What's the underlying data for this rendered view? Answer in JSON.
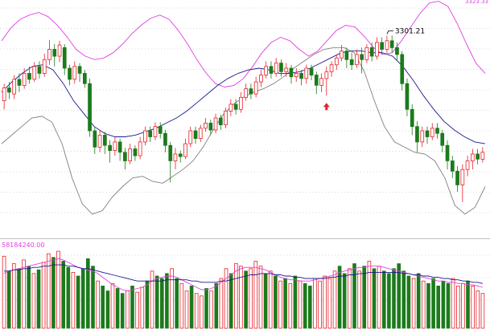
{
  "colors": {
    "up": "#e8202a",
    "down": "#1c7a1c",
    "upper_band": "#e040e0",
    "lower_band": "#808080",
    "middle_band": "#1a1a8c",
    "volume_ma_short": "#e040e0",
    "volume_ma_long": "#1a1a8c",
    "grid": "#b0b0b0",
    "max_marker": "#000000",
    "volume_label": "#e040e0",
    "signal_arrow": "#e8202a"
  },
  "price_panel": {
    "max_label": "3301.21",
    "top_right_label": "3323.33"
  },
  "volume_panel": {
    "label": "58184240.00"
  },
  "chart_data": [
    {
      "type": "candlestick",
      "title": "",
      "overlays": [
        "upper_band",
        "middle_band",
        "lower_band"
      ],
      "signal_arrow_index": 64,
      "candles": [
        [
          3230,
          3245,
          3250,
          3220
        ],
        [
          3245,
          3240,
          3252,
          3232
        ],
        [
          3238,
          3255,
          3260,
          3232
        ],
        [
          3255,
          3248,
          3262,
          3240
        ],
        [
          3248,
          3262,
          3268,
          3244
        ],
        [
          3262,
          3255,
          3270,
          3250
        ],
        [
          3255,
          3270,
          3275,
          3252
        ],
        [
          3270,
          3262,
          3276,
          3256
        ],
        [
          3262,
          3278,
          3285,
          3258
        ],
        [
          3278,
          3290,
          3301,
          3272
        ],
        [
          3290,
          3282,
          3296,
          3270
        ],
        [
          3282,
          3295,
          3300,
          3275
        ],
        [
          3292,
          3268,
          3296,
          3260
        ],
        [
          3268,
          3255,
          3272,
          3248
        ],
        [
          3255,
          3270,
          3276,
          3250
        ],
        [
          3270,
          3262,
          3274,
          3252
        ],
        [
          3262,
          3250,
          3266,
          3245
        ],
        [
          3250,
          3195,
          3256,
          3188
        ],
        [
          3195,
          3176,
          3200,
          3168
        ],
        [
          3176,
          3190,
          3196,
          3170
        ],
        [
          3190,
          3178,
          3194,
          3168
        ],
        [
          3178,
          3172,
          3184,
          3158
        ],
        [
          3172,
          3182,
          3188,
          3166
        ],
        [
          3182,
          3170,
          3186,
          3160
        ],
        [
          3170,
          3160,
          3175,
          3150
        ],
        [
          3160,
          3174,
          3180,
          3156
        ],
        [
          3174,
          3166,
          3178,
          3160
        ],
        [
          3166,
          3182,
          3188,
          3162
        ],
        [
          3182,
          3195,
          3200,
          3178
        ],
        [
          3195,
          3188,
          3200,
          3182
        ],
        [
          3188,
          3200,
          3205,
          3184
        ],
        [
          3200,
          3192,
          3205,
          3186
        ],
        [
          3192,
          3178,
          3196,
          3170
        ],
        [
          3178,
          3160,
          3182,
          3135
        ],
        [
          3160,
          3168,
          3175,
          3150
        ],
        [
          3168,
          3165,
          3172,
          3158
        ],
        [
          3165,
          3180,
          3186,
          3162
        ],
        [
          3180,
          3195,
          3200,
          3176
        ],
        [
          3195,
          3186,
          3200,
          3180
        ],
        [
          3186,
          3198,
          3202,
          3182
        ],
        [
          3198,
          3204,
          3210,
          3194
        ],
        [
          3204,
          3196,
          3208,
          3190
        ],
        [
          3196,
          3210,
          3215,
          3192
        ],
        [
          3210,
          3202,
          3214,
          3196
        ],
        [
          3202,
          3218,
          3222,
          3198
        ],
        [
          3218,
          3226,
          3232,
          3212
        ],
        [
          3226,
          3220,
          3232,
          3214
        ],
        [
          3220,
          3234,
          3240,
          3216
        ],
        [
          3234,
          3244,
          3250,
          3230
        ],
        [
          3244,
          3238,
          3250,
          3232
        ],
        [
          3238,
          3252,
          3258,
          3234
        ],
        [
          3252,
          3260,
          3266,
          3246
        ],
        [
          3260,
          3270,
          3276,
          3256
        ],
        [
          3270,
          3262,
          3276,
          3256
        ],
        [
          3262,
          3274,
          3280,
          3258
        ],
        [
          3274,
          3264,
          3278,
          3258
        ],
        [
          3264,
          3268,
          3274,
          3258
        ],
        [
          3268,
          3258,
          3272,
          3250
        ],
        [
          3258,
          3262,
          3268,
          3252
        ],
        [
          3262,
          3256,
          3266,
          3248
        ],
        [
          3256,
          3268,
          3272,
          3250
        ],
        [
          3268,
          3260,
          3272,
          3254
        ],
        [
          3260,
          3248,
          3264,
          3238
        ],
        [
          3248,
          3256,
          3262,
          3240
        ],
        [
          3256,
          3264,
          3270,
          3236
        ],
        [
          3264,
          3272,
          3276,
          3258
        ],
        [
          3272,
          3280,
          3284,
          3266
        ],
        [
          3280,
          3288,
          3295,
          3276
        ],
        [
          3288,
          3278,
          3292,
          3268
        ],
        [
          3278,
          3272,
          3286,
          3266
        ],
        [
          3272,
          3284,
          3290,
          3268
        ],
        [
          3284,
          3278,
          3292,
          3262
        ],
        [
          3278,
          3292,
          3296,
          3274
        ],
        [
          3292,
          3282,
          3298,
          3276
        ],
        [
          3282,
          3298,
          3304,
          3278
        ],
        [
          3298,
          3290,
          3304,
          3284
        ],
        [
          3290,
          3300,
          3306,
          3286
        ],
        [
          3300,
          3292,
          3306,
          3286
        ],
        [
          3292,
          3284,
          3298,
          3276
        ],
        [
          3284,
          3250,
          3288,
          3242
        ],
        [
          3250,
          3220,
          3256,
          3212
        ],
        [
          3220,
          3200,
          3226,
          3190
        ],
        [
          3200,
          3182,
          3206,
          3170
        ],
        [
          3182,
          3195,
          3200,
          3176
        ],
        [
          3195,
          3188,
          3200,
          3180
        ],
        [
          3188,
          3198,
          3204,
          3184
        ],
        [
          3198,
          3192,
          3204,
          3186
        ],
        [
          3192,
          3178,
          3196,
          3170
        ],
        [
          3178,
          3160,
          3184,
          3150
        ],
        [
          3160,
          3148,
          3166,
          3140
        ],
        [
          3148,
          3132,
          3154,
          3124
        ],
        [
          3132,
          3150,
          3156,
          3112
        ],
        [
          3150,
          3160,
          3166,
          3142
        ],
        [
          3160,
          3168,
          3174,
          3150
        ],
        [
          3168,
          3162,
          3174,
          3156
        ],
        [
          3162,
          3170,
          3176,
          3158
        ]
      ],
      "upper_band": [
        3300,
        3315,
        3325,
        3330,
        3333,
        3328,
        3318,
        3305,
        3290,
        3282,
        3278,
        3280,
        3286,
        3296,
        3308,
        3318,
        3326,
        3330,
        3325,
        3312,
        3296,
        3278,
        3262,
        3250,
        3246,
        3248,
        3256,
        3270,
        3286,
        3298,
        3304,
        3300,
        3290,
        3282,
        3288,
        3300,
        3312,
        3318,
        3316,
        3305,
        3292,
        3284,
        3286,
        3300,
        3316,
        3332,
        3344,
        3346,
        3340,
        3320,
        3296,
        3274,
        3262
      ],
      "middle_band": [
        3240,
        3252,
        3262,
        3270,
        3272,
        3266,
        3250,
        3230,
        3215,
        3200,
        3192,
        3188,
        3188,
        3190,
        3194,
        3198,
        3204,
        3210,
        3218,
        3228,
        3238,
        3248,
        3256,
        3262,
        3266,
        3268,
        3266,
        3262,
        3262,
        3264,
        3268,
        3274,
        3280,
        3286,
        3288,
        3288,
        3286,
        3286,
        3282,
        3270,
        3254,
        3236,
        3220,
        3206,
        3196,
        3188,
        3182,
        3180
      ],
      "lower_band": [
        3180,
        3190,
        3200,
        3210,
        3212,
        3205,
        3180,
        3140,
        3110,
        3098,
        3102,
        3118,
        3130,
        3140,
        3142,
        3136,
        3134,
        3142,
        3150,
        3160,
        3176,
        3196,
        3214,
        3226,
        3234,
        3240,
        3244,
        3250,
        3258,
        3268,
        3276,
        3284,
        3290,
        3292,
        3292,
        3286,
        3264,
        3230,
        3200,
        3182,
        3176,
        3170,
        3168,
        3160,
        3140,
        3108,
        3098,
        3106,
        3130
      ]
    },
    {
      "type": "bar",
      "title": "",
      "values": [
        58,
        46,
        52,
        48,
        55,
        50,
        44,
        47,
        53,
        60,
        57,
        62,
        54,
        49,
        45,
        42,
        48,
        56,
        50,
        38,
        34,
        30,
        36,
        32,
        28,
        30,
        34,
        29,
        33,
        38,
        46,
        42,
        40,
        44,
        48,
        40,
        36,
        30,
        34,
        28,
        26,
        32,
        30,
        36,
        40,
        48,
        44,
        52,
        50,
        46,
        48,
        54,
        50,
        44,
        46,
        42,
        38,
        40,
        36,
        42,
        38,
        36,
        34,
        40,
        38,
        42,
        40,
        46,
        50,
        44,
        48,
        52,
        46,
        50,
        54,
        48,
        50,
        46,
        44,
        48,
        52,
        46,
        42,
        40,
        44,
        38,
        36,
        40,
        34,
        38,
        36,
        40,
        34,
        36,
        38,
        34,
        30,
        28
      ],
      "ma_short": [
        44,
        46,
        47,
        48,
        49,
        50,
        51,
        52,
        53,
        54,
        55,
        56,
        55,
        53,
        51,
        49,
        48,
        47,
        46,
        44,
        41,
        38,
        35,
        33,
        31,
        30,
        31,
        32,
        33,
        35,
        38,
        40,
        41,
        42,
        42,
        41,
        39,
        37,
        35,
        33,
        31,
        31,
        32,
        34,
        37,
        40,
        43,
        46,
        48,
        49,
        49,
        49,
        48,
        47,
        45,
        43,
        41,
        40,
        39,
        39,
        38,
        38,
        38,
        39,
        40,
        41,
        42,
        43,
        45,
        46,
        47,
        48,
        49,
        49,
        50,
        50,
        50,
        49,
        48,
        47,
        46,
        45,
        44,
        43,
        42,
        41,
        40,
        39,
        38,
        38,
        37,
        37,
        36,
        36,
        35,
        35,
        34,
        33
      ],
      "ma_long": [
        46,
        46,
        47,
        47,
        48,
        48,
        49,
        49,
        50,
        50,
        51,
        51,
        51,
        50,
        50,
        49,
        48,
        48,
        47,
        46,
        45,
        44,
        43,
        42,
        41,
        40,
        39,
        38,
        38,
        38,
        38,
        38,
        38,
        39,
        39,
        39,
        39,
        39,
        38,
        38,
        37,
        37,
        37,
        37,
        38,
        38,
        39,
        40,
        41,
        42,
        43,
        43,
        44,
        44,
        44,
        43,
        43,
        42,
        42,
        41,
        41,
        40,
        40,
        40,
        40,
        40,
        41,
        41,
        42,
        42,
        43,
        43,
        44,
        44,
        45,
        45,
        45,
        45,
        45,
        45,
        45,
        44,
        44,
        43,
        43,
        42,
        42,
        41,
        41,
        40,
        40,
        39,
        39,
        38,
        38,
        37,
        37,
        36
      ]
    }
  ]
}
